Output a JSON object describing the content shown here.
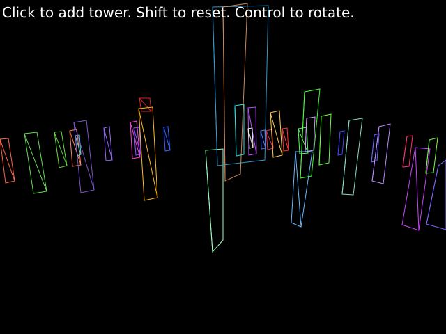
{
  "instructions": "Click to add tower. Shift to reset. Control to rotate.",
  "towers": [
    {
      "color": "#ff6644"
    },
    {
      "color": "#66dd55"
    },
    {
      "color": "#66dd44"
    },
    {
      "color": "#ff8866"
    },
    {
      "color": "#55cccc"
    },
    {
      "color": "#7755cc"
    },
    {
      "color": "#9966ff"
    },
    {
      "color": "#ff44dd"
    },
    {
      "color": "#8855ff"
    },
    {
      "color": "#dd2222"
    },
    {
      "color": "#ffbb22"
    },
    {
      "color": "#3366ff"
    },
    {
      "color": "#99ffbb"
    },
    {
      "color": "#3399cc"
    },
    {
      "color": "#cc8855"
    },
    {
      "color": "#33dddd"
    },
    {
      "color": "#bb55ff"
    },
    {
      "color": "#eeeeee"
    },
    {
      "color": "#5577ff"
    },
    {
      "color": "#dd3355"
    },
    {
      "color": "#ffcc55"
    },
    {
      "color": "#ff3333"
    },
    {
      "color": "#55ff55"
    },
    {
      "color": "#44ff33"
    },
    {
      "color": "#cc99ff"
    },
    {
      "color": "#66ff44"
    },
    {
      "color": "#66bbff"
    },
    {
      "color": "#4444ff"
    },
    {
      "color": "#88ddcc"
    },
    {
      "color": "#6666ff"
    },
    {
      "color": "#bb88ff"
    },
    {
      "color": "#ff3377"
    },
    {
      "color": "#cc44ff"
    },
    {
      "color": "#77ff44"
    },
    {
      "color": "#7766ff"
    }
  ]
}
